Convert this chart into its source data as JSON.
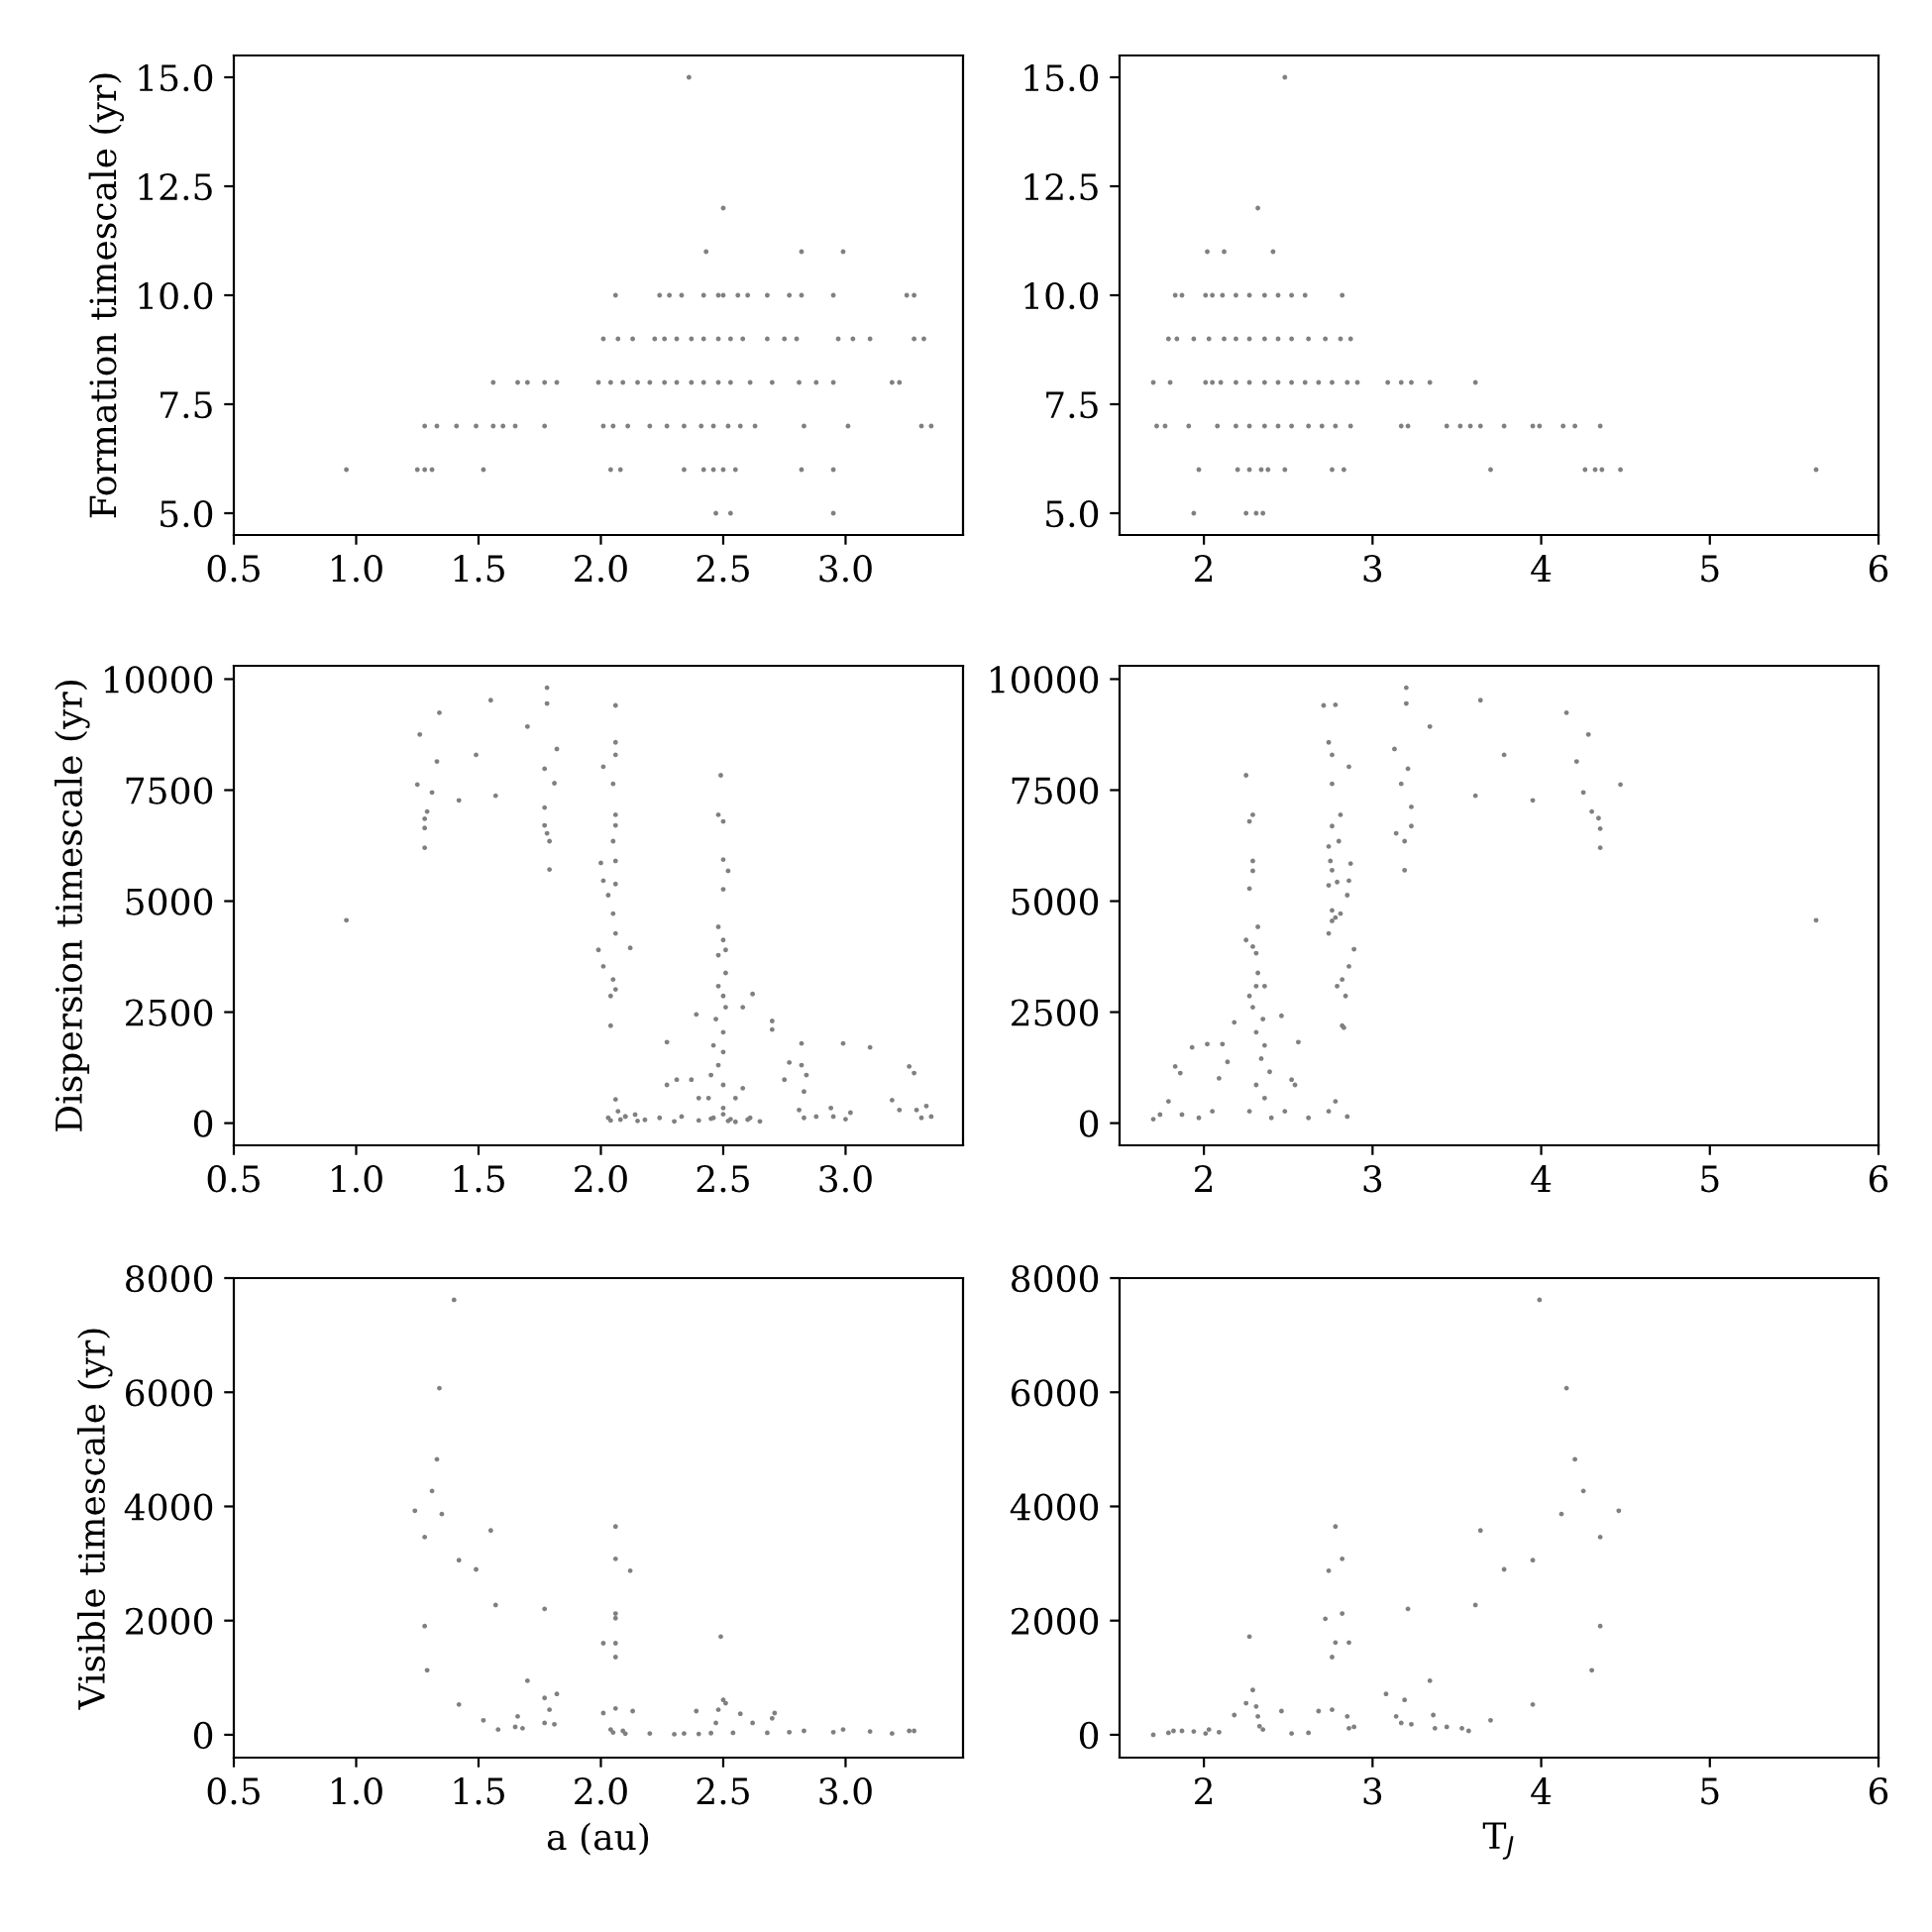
{
  "chart_data": [
    {
      "type": "scatter",
      "ylabel": "Formation timescale (yr)",
      "xlim": [
        0.5,
        3.48
      ],
      "ylim": [
        4.5,
        15.5
      ],
      "xticks": [
        0.5,
        {
          "value": 1,
          "label": "1.0"
        },
        1.5,
        {
          "value": 2,
          "label": "2.0"
        },
        2.5,
        {
          "value": 3,
          "label": "3.0"
        }
      ],
      "yticks": [
        {
          "value": 5,
          "label": "5.0"
        },
        7.5,
        {
          "value": 10,
          "label": "10.0"
        },
        12.5,
        {
          "value": 15,
          "label": "15.0"
        }
      ],
      "marker": "circle",
      "grid": false,
      "series": [
        {
          "color": "#808080",
          "x": [
            2.36,
            2.5,
            2.43,
            2.82,
            2.99,
            2.06,
            2.24,
            2.28,
            2.33,
            2.42,
            2.48,
            2.5,
            2.56,
            2.6,
            2.68,
            2.77,
            2.82,
            2.95,
            3.25,
            3.28,
            2.01,
            2.07,
            2.13,
            2.22,
            2.26,
            2.31,
            2.37,
            2.42,
            2.48,
            2.53,
            2.58,
            2.68,
            2.75,
            2.8,
            2.97,
            3.03,
            3.1,
            3.28,
            3.32,
            1.56,
            1.66,
            1.7,
            1.77,
            1.82,
            1.99,
            2.04,
            2.09,
            2.15,
            2.2,
            2.26,
            2.31,
            2.37,
            2.42,
            2.48,
            2.53,
            2.61,
            2.7,
            2.81,
            2.88,
            2.95,
            3.19,
            3.22,
            1.28,
            1.33,
            1.41,
            1.49,
            1.56,
            1.6,
            1.65,
            1.77,
            2.01,
            2.05,
            2.11,
            2.2,
            2.27,
            2.34,
            2.41,
            2.46,
            2.52,
            2.57,
            2.63,
            2.83,
            3.01,
            3.31,
            3.35,
            0.96,
            1.25,
            1.28,
            1.31,
            1.52,
            2.04,
            2.08,
            2.34,
            2.42,
            2.46,
            2.5,
            2.55,
            2.82,
            2.95,
            2.47,
            2.53,
            2.95
          ],
          "values": [
            15,
            12,
            11,
            11,
            11,
            10,
            10,
            10,
            10,
            10,
            10,
            10,
            10,
            10,
            10,
            10,
            10,
            10,
            10,
            10,
            9,
            9,
            9,
            9,
            9,
            9,
            9,
            9,
            9,
            9,
            9,
            9,
            9,
            9,
            9,
            9,
            9,
            9,
            9,
            8,
            8,
            8,
            8,
            8,
            8,
            8,
            8,
            8,
            8,
            8,
            8,
            8,
            8,
            8,
            8,
            8,
            8,
            8,
            8,
            8,
            8,
            8,
            7,
            7,
            7,
            7,
            7,
            7,
            7,
            7,
            7,
            7,
            7,
            7,
            7,
            7,
            7,
            7,
            7,
            7,
            7,
            7,
            7,
            7,
            7,
            6,
            6,
            6,
            6,
            6,
            6,
            6,
            6,
            6,
            6,
            6,
            6,
            6,
            6,
            5,
            5,
            5
          ]
        }
      ]
    },
    {
      "type": "scatter",
      "xlim": [
        1.5,
        6.0
      ],
      "ylim": [
        4.5,
        15.5
      ],
      "xticks": [
        2,
        3,
        4,
        5,
        6
      ],
      "yticks": [
        {
          "value": 5,
          "label": "5.0"
        },
        7.5,
        {
          "value": 10,
          "label": "10.0"
        },
        12.5,
        {
          "value": 15,
          "label": "15.0"
        }
      ],
      "marker": "circle",
      "grid": false,
      "series": [
        {
          "color": "#808080",
          "x": [
            2.48,
            2.32,
            2.02,
            2.12,
            2.41,
            1.83,
            1.87,
            2.01,
            2.05,
            2.11,
            2.19,
            2.27,
            2.36,
            2.44,
            2.52,
            2.6,
            2.82,
            1.79,
            1.84,
            1.94,
            2.03,
            2.12,
            2.19,
            2.27,
            2.36,
            2.44,
            2.52,
            2.62,
            2.72,
            2.81,
            2.87,
            1.7,
            1.8,
            2.01,
            2.05,
            2.1,
            2.19,
            2.27,
            2.36,
            2.44,
            2.52,
            2.6,
            2.68,
            2.76,
            2.85,
            2.91,
            3.09,
            3.17,
            3.23,
            3.34,
            3.61,
            1.72,
            1.77,
            1.91,
            2.08,
            2.19,
            2.27,
            2.36,
            2.44,
            2.52,
            2.62,
            2.7,
            2.78,
            2.87,
            3.17,
            3.21,
            3.44,
            3.52,
            3.58,
            3.64,
            3.78,
            3.95,
            3.99,
            4.13,
            4.2,
            4.35,
            1.97,
            2.2,
            2.27,
            2.34,
            2.38,
            2.48,
            2.76,
            2.83,
            3.7,
            4.26,
            4.32,
            4.36,
            4.47,
            5.63,
            1.94,
            2.25,
            2.31,
            2.35
          ],
          "values": [
            15,
            12,
            11,
            11,
            11,
            10,
            10,
            10,
            10,
            10,
            10,
            10,
            10,
            10,
            10,
            10,
            10,
            9,
            9,
            9,
            9,
            9,
            9,
            9,
            9,
            9,
            9,
            9,
            9,
            9,
            9,
            8,
            8,
            8,
            8,
            8,
            8,
            8,
            8,
            8,
            8,
            8,
            8,
            8,
            8,
            8,
            8,
            8,
            8,
            8,
            8,
            7,
            7,
            7,
            7,
            7,
            7,
            7,
            7,
            7,
            7,
            7,
            7,
            7,
            7,
            7,
            7,
            7,
            7,
            7,
            7,
            7,
            7,
            7,
            7,
            7,
            6,
            6,
            6,
            6,
            6,
            6,
            6,
            6,
            6,
            6,
            6,
            6,
            6,
            6,
            5,
            5,
            5,
            5
          ]
        }
      ]
    },
    {
      "type": "scatter",
      "ylabel": "Dispersion timescale (yr)",
      "xlim": [
        0.5,
        3.48
      ],
      "ylim": [
        -500,
        10300
      ],
      "xticks": [
        0.5,
        {
          "value": 1,
          "label": "1.0"
        },
        1.5,
        {
          "value": 2,
          "label": "2.0"
        },
        2.5,
        {
          "value": 3,
          "label": "3.0"
        }
      ],
      "yticks": [
        0,
        2500,
        5000,
        7500,
        10000
      ],
      "marker": "circle",
      "grid": false,
      "series": [
        {
          "color": "#808080",
          "x": [
            0.96,
            1.25,
            1.26,
            1.28,
            1.28,
            1.28,
            1.29,
            1.31,
            1.33,
            1.34,
            1.42,
            1.49,
            1.55,
            1.57,
            1.7,
            1.77,
            1.77,
            1.77,
            1.78,
            1.79,
            1.79,
            1.78,
            1.78,
            1.81,
            1.82,
            2.06,
            2.06,
            2.06,
            2.01,
            2.05,
            2.06,
            2.06,
            2.05,
            2.06,
            2.0,
            2.01,
            2.06,
            2.03,
            2.05,
            2.06,
            1.99,
            2.12,
            2.01,
            2.05,
            2.06,
            2.04,
            2.04,
            2.03,
            2.07,
            2.1,
            2.14,
            2.06,
            2.18,
            2.24,
            2.27,
            2.27,
            2.31,
            2.37,
            2.4,
            2.33,
            2.49,
            2.48,
            2.5,
            2.5,
            2.52,
            2.5,
            2.48,
            2.5,
            2.51,
            2.48,
            2.51,
            2.48,
            2.5,
            2.51,
            2.47,
            2.5,
            2.46,
            2.5,
            2.48,
            2.45,
            2.5,
            2.44,
            2.5,
            2.46,
            2.53,
            2.39,
            2.58,
            2.62,
            2.58,
            2.61,
            2.55,
            2.7,
            2.7,
            2.77,
            2.82,
            2.82,
            2.84,
            2.83,
            2.75,
            2.81,
            2.83,
            2.88,
            2.94,
            2.95,
            3.0,
            2.99,
            3.1,
            3.02,
            3.19,
            3.26,
            3.28,
            3.22,
            3.29,
            3.31,
            3.33,
            3.35,
            2.3,
            2.4,
            2.45,
            2.5,
            2.52,
            2.55,
            2.6,
            2.65,
            2.04,
            2.08,
            2.1,
            2.15
          ],
          "values": [
            4570,
            7626,
            8754,
            6855,
            6647,
            6202,
            7018,
            7448,
            8145,
            9243,
            7270,
            8294,
            9525,
            7374,
            8932,
            7982,
            7107,
            6706,
            6528,
            6350,
            5712,
            9807,
            9451,
            7656,
            8427,
            9407,
            8576,
            8294,
            8027,
            7641,
            6944,
            6706,
            6350,
            5905,
            5861,
            5460,
            5386,
            5134,
            4718,
            4273,
            3902,
            3947,
            3531,
            3234,
            3012,
            2864,
            2196,
            120,
            267,
            148,
            193,
            534,
            74,
            119,
            1825,
            861,
            979,
            979,
            564,
            148,
            7834,
            6944,
            6795,
            5935,
            5682,
            5267,
            4421,
            4125,
            3902,
            3783,
            3383,
            3086,
            2864,
            2611,
            2344,
            2047,
            1751,
            1602,
            1306,
            1083,
            861,
            564,
            341,
            119,
            89,
            2448,
            2611,
            2908,
            786,
            119,
            564,
            2300,
            2107,
            1365,
            1795,
            1306,
            1083,
            712,
            979,
            297,
            119,
            148,
            341,
            148,
            89,
            1795,
            1706,
            237,
            519,
            1276,
            1128,
            297,
            297,
            119,
            386,
            148,
            40,
            60,
            100,
            200,
            50,
            30,
            80,
            40,
            60,
            80,
            150,
            50
          ]
        }
      ]
    },
    {
      "type": "scatter",
      "xlim": [
        1.5,
        6.0
      ],
      "ylim": [
        -500,
        10300
      ],
      "xticks": [
        2,
        3,
        4,
        5,
        6
      ],
      "yticks": [
        0,
        2500,
        5000,
        7500,
        10000
      ],
      "marker": "circle",
      "grid": false,
      "series": [
        {
          "color": "#808080",
          "x": [
            1.7,
            1.74,
            1.79,
            1.83,
            1.86,
            1.87,
            1.93,
            1.97,
            2.02,
            2.05,
            2.09,
            2.11,
            2.14,
            2.18,
            2.25,
            2.27,
            2.29,
            2.29,
            2.29,
            2.27,
            2.25,
            2.29,
            2.32,
            2.31,
            2.32,
            2.27,
            2.31,
            2.36,
            2.29,
            2.35,
            2.31,
            2.36,
            2.34,
            2.39,
            2.31,
            2.36,
            2.27,
            2.4,
            2.46,
            2.52,
            2.56,
            2.54,
            2.48,
            2.62,
            2.71,
            2.78,
            2.74,
            2.76,
            2.86,
            2.76,
            2.81,
            2.76,
            2.74,
            2.8,
            2.75,
            2.76,
            2.87,
            2.74,
            2.79,
            2.86,
            2.85,
            2.76,
            2.76,
            2.81,
            2.78,
            2.74,
            2.89,
            2.86,
            2.82,
            2.79,
            2.84,
            2.82,
            2.83,
            2.78,
            2.74,
            2.85,
            3.13,
            3.14,
            3.17,
            3.19,
            3.19,
            3.2,
            3.2,
            3.21,
            3.23,
            3.23,
            3.34,
            3.61,
            3.64,
            3.78,
            3.95,
            4.15,
            4.21,
            4.25,
            4.28,
            4.3,
            4.34,
            4.35,
            4.35,
            4.47,
            5.63
          ],
          "values": [
            89,
            193,
            490,
            1276,
            1128,
            193,
            1706,
            119,
            1780,
            267,
            1009,
            1780,
            1380,
            2270,
            7834,
            6795,
            6944,
            5905,
            5682,
            5282,
            4125,
            3976,
            4421,
            3828,
            3383,
            2864,
            3086,
            3086,
            2611,
            2344,
            2047,
            1751,
            1454,
            1157,
            861,
            564,
            267,
            119,
            2418,
            979,
            1825,
            861,
            267,
            119,
            9407,
            9421,
            8576,
            8294,
            8027,
            7641,
            6944,
            6691,
            6231,
            6350,
            5905,
            5697,
            5846,
            5356,
            5430,
            5460,
            5134,
            4792,
            4555,
            4718,
            4629,
            4273,
            3917,
            3531,
            3234,
            3086,
            2864,
            2196,
            2151,
            490,
            267,
            148,
            8427,
            6528,
            7641,
            5697,
            6350,
            9807,
            9451,
            7982,
            7122,
            6691,
            8932,
            7374,
            9525,
            8294,
            7270,
            9243,
            8145,
            7448,
            8754,
            7018,
            6869,
            6632,
            6202,
            7626,
            4570
          ]
        }
      ]
    },
    {
      "type": "scatter",
      "ylabel": "Visible timescale (yr)",
      "xlabel": "a (au)",
      "xlim": [
        0.5,
        3.48
      ],
      "ylim": [
        -400,
        8000
      ],
      "xticks": [
        0.5,
        {
          "value": 1,
          "label": "1.0"
        },
        1.5,
        {
          "value": 2,
          "label": "2.0"
        },
        2.5,
        {
          "value": 3,
          "label": "3.0"
        }
      ],
      "yticks": [
        0,
        2000,
        4000,
        6000,
        8000
      ],
      "marker": "circle",
      "grid": false,
      "series": [
        {
          "color": "#808080",
          "x": [
            1.24,
            1.28,
            1.28,
            1.29,
            1.31,
            1.33,
            1.34,
            1.35,
            1.4,
            1.42,
            1.42,
            1.49,
            1.52,
            1.55,
            1.57,
            1.58,
            1.65,
            1.66,
            1.68,
            1.7,
            1.77,
            1.77,
            1.79,
            1.77,
            1.81,
            1.82,
            2.01,
            2.06,
            2.06,
            2.12,
            2.06,
            2.06,
            2.06,
            2.06,
            2.01,
            2.06,
            2.13,
            2.04,
            2.09,
            2.2,
            2.34,
            2.39,
            2.49,
            2.5,
            2.51,
            2.48,
            2.47,
            2.54,
            2.57,
            2.62,
            2.71,
            2.7,
            2.68,
            2.77,
            2.83,
            2.95,
            2.99,
            3.1,
            3.19,
            3.26,
            3.28,
            2.3,
            2.4,
            2.45,
            2.05,
            2.1
          ],
          "values": [
            3925,
            3463,
            1905,
            1131,
            4271,
            4826,
            6072,
            3867,
            7619,
            3059,
            531,
            2898,
            254,
            3579,
            2274,
            92,
            139,
            323,
            115,
            947,
            2205,
            646,
            439,
            208,
            185,
            716,
            1605,
            3648,
            3082,
            2874,
            2124,
            2043,
            1605,
            1362,
            381,
            462,
            416,
            92,
            69,
            23,
            23,
            416,
            1720,
            612,
            554,
            439,
            208,
            35,
            369,
            208,
            381,
            289,
            35,
            46,
            69,
            46,
            92,
            58,
            23,
            69,
            69,
            10,
            15,
            30,
            40,
            20
          ]
        }
      ]
    },
    {
      "type": "scatter",
      "xlabel": "T$_{J}$",
      "xlim": [
        1.5,
        6.0
      ],
      "ylim": [
        -400,
        8000
      ],
      "xticks": [
        2,
        3,
        4,
        5,
        6
      ],
      "yticks": [
        0,
        2000,
        4000,
        6000,
        8000
      ],
      "marker": "circle",
      "grid": false,
      "series": [
        {
          "color": "#808080",
          "x": [
            1.7,
            1.79,
            1.82,
            1.87,
            1.94,
            2.01,
            2.03,
            2.09,
            2.18,
            2.25,
            2.27,
            2.29,
            2.31,
            2.32,
            2.33,
            2.35,
            2.46,
            2.52,
            2.62,
            2.68,
            2.72,
            2.74,
            2.76,
            2.76,
            2.78,
            2.78,
            2.82,
            2.82,
            2.85,
            2.86,
            2.86,
            2.89,
            3.08,
            3.14,
            3.19,
            3.17,
            3.21,
            3.23,
            3.34,
            3.36,
            3.37,
            3.44,
            3.53,
            3.57,
            3.61,
            3.64,
            3.7,
            3.78,
            3.95,
            3.95,
            3.99,
            4.12,
            4.15,
            4.2,
            4.25,
            4.3,
            4.35,
            4.35,
            4.46
          ],
          "values": [
            0,
            35,
            69,
            69,
            58,
            23,
            92,
            46,
            346,
            554,
            1720,
            785,
            496,
            323,
            150,
            92,
            416,
            23,
            35,
            416,
            2032,
            2874,
            1362,
            439,
            3648,
            1616,
            3082,
            2124,
            323,
            1616,
            115,
            139,
            716,
            323,
            612,
            208,
            2205,
            185,
            947,
            346,
            115,
            139,
            115,
            69,
            2274,
            3579,
            254,
            2898,
            3059,
            531,
            7619,
            3867,
            6072,
            4826,
            4271,
            1131,
            3463,
            1905,
            3925
          ]
        }
      ]
    }
  ]
}
